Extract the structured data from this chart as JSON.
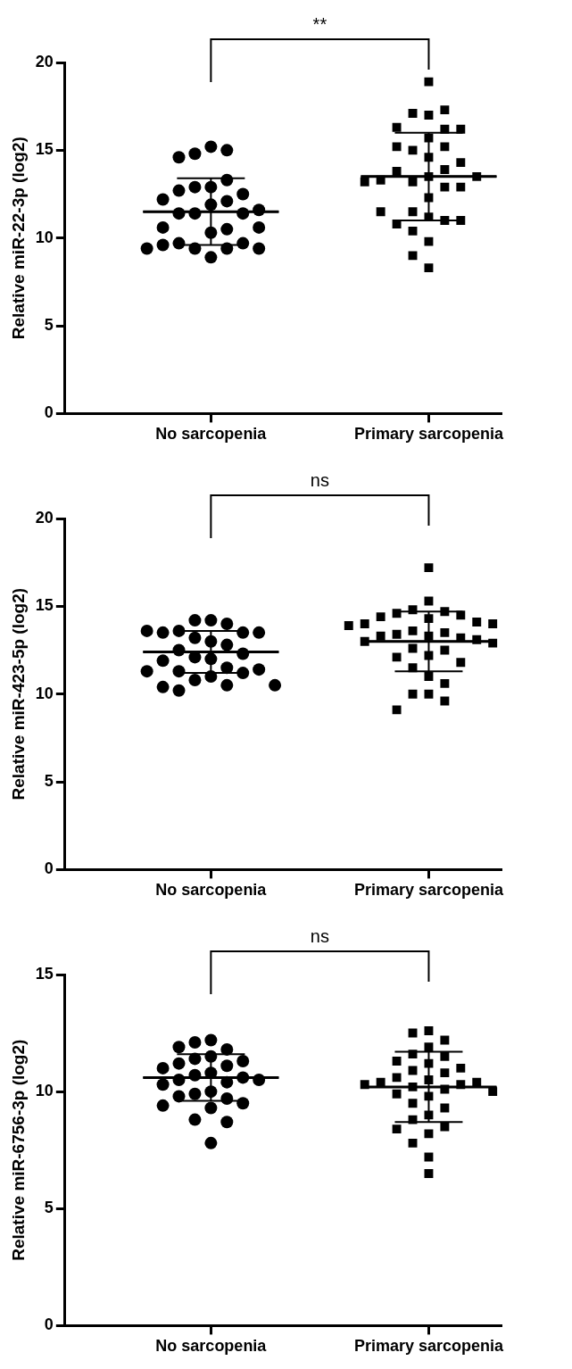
{
  "chart_data": [
    {
      "type": "scatter",
      "categories": [
        "No sarcopenia",
        "Primary sarcopenia"
      ],
      "ylabel": "Relative miR-22-3p (log2)",
      "ylim": [
        0,
        20
      ],
      "yticks": [
        0,
        5,
        10,
        15,
        20
      ],
      "grid": false,
      "legend": false,
      "annotations": [
        "**"
      ],
      "series": [
        {
          "color": "#000000",
          "marker": "circle",
          "x": [
            "No sarcopenia",
            "No sarcopenia",
            "No sarcopenia",
            "No sarcopenia",
            "No sarcopenia",
            "No sarcopenia",
            "No sarcopenia",
            "No sarcopenia",
            "No sarcopenia",
            "No sarcopenia",
            "No sarcopenia",
            "No sarcopenia",
            "No sarcopenia",
            "No sarcopenia",
            "No sarcopenia",
            "No sarcopenia",
            "No sarcopenia",
            "No sarcopenia",
            "No sarcopenia",
            "No sarcopenia",
            "No sarcopenia",
            "No sarcopenia",
            "No sarcopenia",
            "No sarcopenia",
            "No sarcopenia",
            "No sarcopenia",
            "No sarcopenia",
            "No sarcopenia"
          ],
          "values": [
            15.2,
            14.8,
            15.0,
            14.6,
            12.9,
            12.9,
            13.3,
            12.7,
            12.5,
            12.1,
            12.2,
            11.9,
            11.4,
            11.4,
            11.6,
            11.4,
            10.3,
            10.5,
            10.6,
            10.6,
            9.4,
            9.7,
            9.4,
            9.7,
            9.6,
            8.9,
            9.4,
            9.4
          ]
        },
        {
          "color": "#000000",
          "marker": "square",
          "x": [
            "Primary sarcopenia",
            "Primary sarcopenia",
            "Primary sarcopenia",
            "Primary sarcopenia",
            "Primary sarcopenia",
            "Primary sarcopenia",
            "Primary sarcopenia",
            "Primary sarcopenia",
            "Primary sarcopenia",
            "Primary sarcopenia",
            "Primary sarcopenia",
            "Primary sarcopenia",
            "Primary sarcopenia",
            "Primary sarcopenia",
            "Primary sarcopenia",
            "Primary sarcopenia",
            "Primary sarcopenia",
            "Primary sarcopenia",
            "Primary sarcopenia",
            "Primary sarcopenia",
            "Primary sarcopenia",
            "Primary sarcopenia",
            "Primary sarcopenia",
            "Primary sarcopenia",
            "Primary sarcopenia",
            "Primary sarcopenia",
            "Primary sarcopenia",
            "Primary sarcopenia",
            "Primary sarcopenia",
            "Primary sarcopenia",
            "Primary sarcopenia",
            "Primary sarcopenia",
            "Primary sarcopenia"
          ],
          "values": [
            18.9,
            17.0,
            17.1,
            17.3,
            16.2,
            15.7,
            16.3,
            16.2,
            15.0,
            15.2,
            14.6,
            15.2,
            14.3,
            13.5,
            13.2,
            13.9,
            13.8,
            12.9,
            12.9,
            13.3,
            12.3,
            13.5,
            13.2,
            11.5,
            11.2,
            10.4,
            11.0,
            10.8,
            11.0,
            11.5,
            9.8,
            9.0,
            8.3
          ]
        },
        {
          "type": "box",
          "color": "#000000",
          "boxes": [
            {
              "low": 9.6,
              "q1": 11.5,
              "median": 11.5,
              "q3": 11.5,
              "high": 13.4
            },
            {
              "low": 11.0,
              "q1": 13.5,
              "median": 13.5,
              "q3": 13.5,
              "high": 16.0
            }
          ]
        }
      ]
    },
    {
      "type": "scatter",
      "categories": [
        "No sarcopenia",
        "Primary sarcopenia"
      ],
      "ylabel": "Relative miR-423-5p (log2)",
      "ylim": [
        0,
        20
      ],
      "yticks": [
        0,
        5,
        10,
        15,
        20
      ],
      "grid": false,
      "legend": false,
      "annotations": [
        "ns"
      ],
      "series": [
        {
          "color": "#000000",
          "marker": "circle",
          "x": [
            "No sarcopenia",
            "No sarcopenia",
            "No sarcopenia",
            "No sarcopenia",
            "No sarcopenia",
            "No sarcopenia",
            "No sarcopenia",
            "No sarcopenia",
            "No sarcopenia",
            "No sarcopenia",
            "No sarcopenia",
            "No sarcopenia",
            "No sarcopenia",
            "No sarcopenia",
            "No sarcopenia",
            "No sarcopenia",
            "No sarcopenia",
            "No sarcopenia",
            "No sarcopenia",
            "No sarcopenia",
            "No sarcopenia",
            "No sarcopenia",
            "No sarcopenia",
            "No sarcopenia",
            "No sarcopenia",
            "No sarcopenia",
            "No sarcopenia"
          ],
          "values": [
            14.2,
            14.2,
            14.0,
            13.6,
            13.5,
            13.5,
            13.5,
            13.6,
            13.0,
            13.2,
            12.8,
            12.5,
            12.3,
            12.0,
            12.1,
            11.9,
            11.5,
            11.3,
            11.4,
            11.2,
            11.0,
            11.3,
            10.8,
            10.5,
            10.4,
            10.2,
            10.5
          ]
        },
        {
          "color": "#000000",
          "marker": "square",
          "x": [
            "Primary sarcopenia",
            "Primary sarcopenia",
            "Primary sarcopenia",
            "Primary sarcopenia",
            "Primary sarcopenia",
            "Primary sarcopenia",
            "Primary sarcopenia",
            "Primary sarcopenia",
            "Primary sarcopenia",
            "Primary sarcopenia",
            "Primary sarcopenia",
            "Primary sarcopenia",
            "Primary sarcopenia",
            "Primary sarcopenia",
            "Primary sarcopenia",
            "Primary sarcopenia",
            "Primary sarcopenia",
            "Primary sarcopenia",
            "Primary sarcopenia",
            "Primary sarcopenia",
            "Primary sarcopenia",
            "Primary sarcopenia",
            "Primary sarcopenia",
            "Primary sarcopenia",
            "Primary sarcopenia",
            "Primary sarcopenia",
            "Primary sarcopenia",
            "Primary sarcopenia",
            "Primary sarcopenia",
            "Primary sarcopenia",
            "Primary sarcopenia",
            "Primary sarcopenia",
            "Primary sarcopenia"
          ],
          "values": [
            17.2,
            15.3,
            14.8,
            14.7,
            14.6,
            14.5,
            14.4,
            14.3,
            14.1,
            14.0,
            14.0,
            13.9,
            13.6,
            13.5,
            13.4,
            13.3,
            13.2,
            13.3,
            13.1,
            13.0,
            12.9,
            12.6,
            12.5,
            12.2,
            12.1,
            11.8,
            11.5,
            11.0,
            10.6,
            10.0,
            10.0,
            9.6,
            9.1
          ]
        },
        {
          "type": "box",
          "color": "#000000",
          "boxes": [
            {
              "low": 11.2,
              "q1": 12.4,
              "median": 12.4,
              "q3": 12.4,
              "high": 13.6
            },
            {
              "low": 11.3,
              "q1": 13.0,
              "median": 13.0,
              "q3": 13.0,
              "high": 14.7
            }
          ]
        }
      ]
    },
    {
      "type": "scatter",
      "categories": [
        "No sarcopenia",
        "Primary sarcopenia"
      ],
      "ylabel": "Relative miR-6756-3p (log2)",
      "ylim": [
        0,
        15
      ],
      "yticks": [
        0,
        5,
        10,
        15
      ],
      "grid": false,
      "legend": false,
      "annotations": [
        "ns"
      ],
      "series": [
        {
          "color": "#000000",
          "marker": "circle",
          "x": [
            "No sarcopenia",
            "No sarcopenia",
            "No sarcopenia",
            "No sarcopenia",
            "No sarcopenia",
            "No sarcopenia",
            "No sarcopenia",
            "No sarcopenia",
            "No sarcopenia",
            "No sarcopenia",
            "No sarcopenia",
            "No sarcopenia",
            "No sarcopenia",
            "No sarcopenia",
            "No sarcopenia",
            "No sarcopenia",
            "No sarcopenia",
            "No sarcopenia",
            "No sarcopenia",
            "No sarcopenia",
            "No sarcopenia",
            "No sarcopenia",
            "No sarcopenia",
            "No sarcopenia",
            "No sarcopenia",
            "No sarcopenia",
            "No sarcopenia"
          ],
          "values": [
            12.2,
            12.1,
            11.8,
            11.9,
            11.5,
            11.4,
            11.3,
            11.2,
            11.1,
            11.0,
            10.8,
            10.7,
            10.6,
            10.5,
            10.5,
            10.4,
            10.3,
            10.0,
            9.9,
            9.8,
            9.7,
            9.5,
            9.4,
            9.3,
            8.8,
            8.7,
            7.8
          ]
        },
        {
          "color": "#000000",
          "marker": "square",
          "x": [
            "Primary sarcopenia",
            "Primary sarcopenia",
            "Primary sarcopenia",
            "Primary sarcopenia",
            "Primary sarcopenia",
            "Primary sarcopenia",
            "Primary sarcopenia",
            "Primary sarcopenia",
            "Primary sarcopenia",
            "Primary sarcopenia",
            "Primary sarcopenia",
            "Primary sarcopenia",
            "Primary sarcopenia",
            "Primary sarcopenia",
            "Primary sarcopenia",
            "Primary sarcopenia",
            "Primary sarcopenia",
            "Primary sarcopenia",
            "Primary sarcopenia",
            "Primary sarcopenia",
            "Primary sarcopenia",
            "Primary sarcopenia",
            "Primary sarcopenia",
            "Primary sarcopenia",
            "Primary sarcopenia",
            "Primary sarcopenia",
            "Primary sarcopenia",
            "Primary sarcopenia",
            "Primary sarcopenia",
            "Primary sarcopenia",
            "Primary sarcopenia",
            "Primary sarcopenia"
          ],
          "values": [
            12.6,
            12.5,
            12.2,
            11.9,
            11.6,
            11.5,
            11.3,
            11.2,
            11.0,
            10.9,
            10.8,
            10.6,
            10.5,
            10.4,
            10.4,
            10.3,
            10.3,
            10.2,
            10.1,
            10.0,
            9.9,
            9.8,
            9.5,
            9.3,
            9.0,
            8.8,
            8.5,
            8.4,
            8.2,
            7.8,
            7.2,
            6.5
          ]
        },
        {
          "type": "box",
          "color": "#000000",
          "boxes": [
            {
              "low": 9.6,
              "q1": 10.6,
              "median": 10.6,
              "q3": 10.6,
              "high": 11.6
            },
            {
              "low": 8.7,
              "q1": 10.2,
              "median": 10.2,
              "q3": 10.2,
              "high": 11.7
            }
          ]
        }
      ]
    }
  ]
}
